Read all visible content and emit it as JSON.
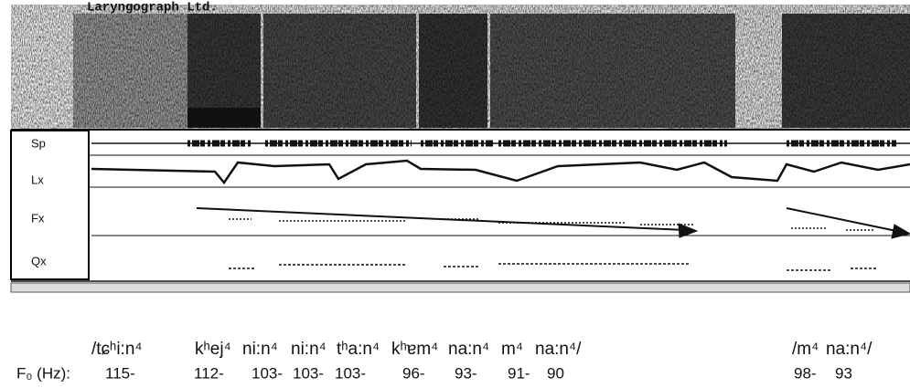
{
  "header": {
    "title": "Laryngograph Ltd."
  },
  "panels": [
    "Sp",
    "Lx",
    "Fx",
    "Qx"
  ],
  "transcription": {
    "phrase1": [
      "/tɕʰi:n⁴",
      "kʰej⁴",
      "ni:n⁴",
      "ni:n⁴",
      "tʰa:n⁴",
      "kʰɐm⁴",
      "na:n⁴",
      "m⁴",
      "na:n⁴/"
    ],
    "phrase2": [
      "/m⁴",
      "na:n⁴/"
    ]
  },
  "f0": {
    "label": "F₀ (Hz):",
    "phrase1": [
      "115-",
      "112-",
      "103-",
      "103-",
      "103-",
      "96-",
      "93-",
      "91-",
      "90"
    ],
    "phrase2": [
      "98-",
      "93"
    ]
  }
}
